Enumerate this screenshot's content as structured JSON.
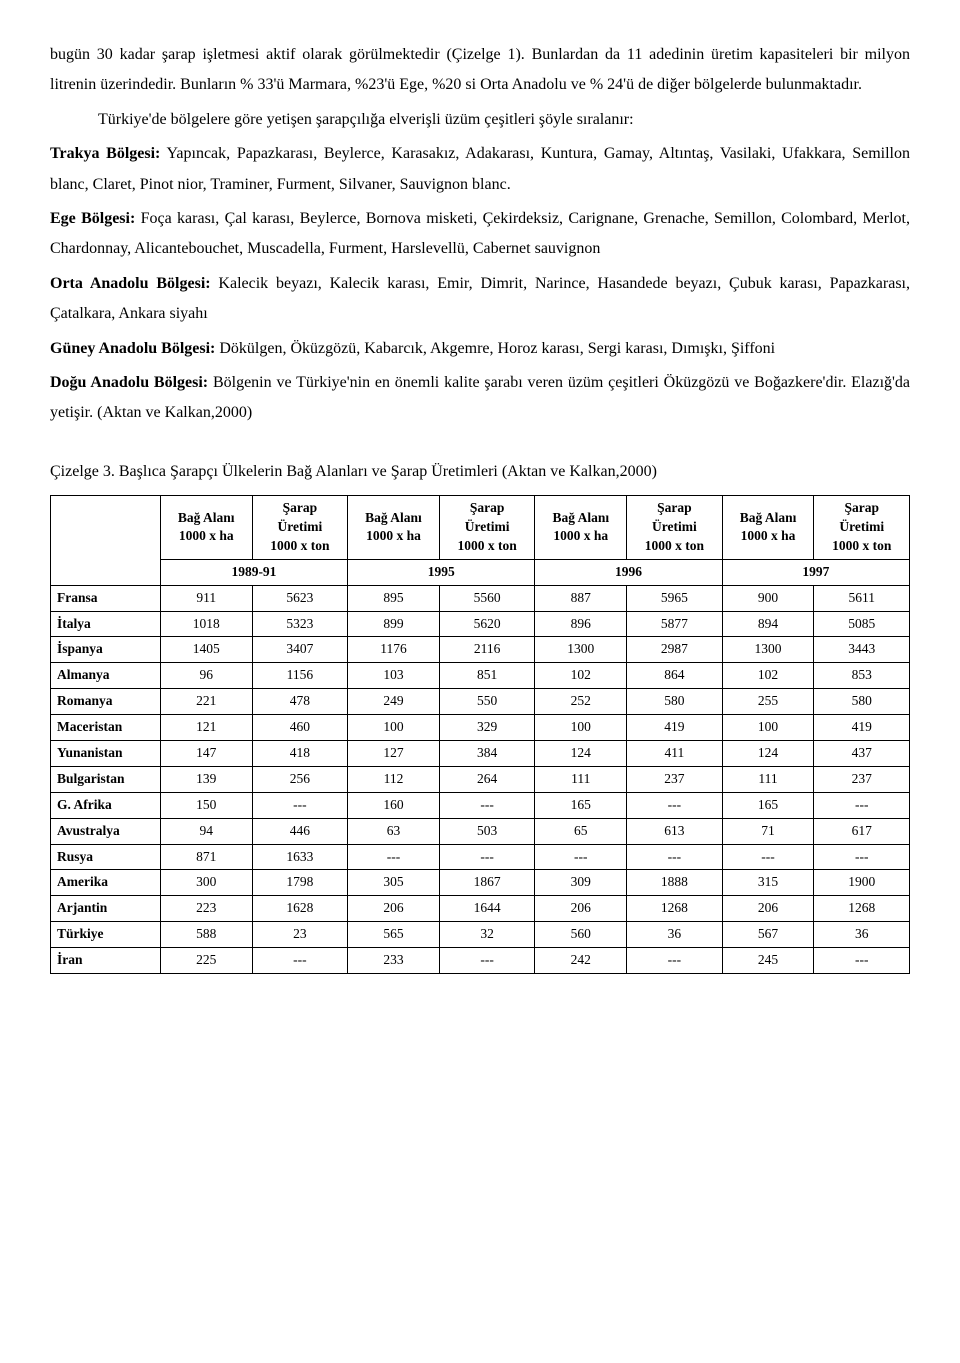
{
  "paragraphs": {
    "p1": "bugün 30 kadar şarap işletmesi aktif olarak görülmektedir (Çizelge 1). Bunlardan da 11 adedinin üretim kapasiteleri bir milyon litrenin üzerindedir. Bunların % 33'ü Marmara, %23'ü Ege, %20 si Orta Anadolu ve % 24'ü de diğer bölgelerde bulunmaktadır.",
    "p2": "Türkiye'de bölgelere göre yetişen şarapçılığa elverişli üzüm çeşitleri şöyle sıralanır:",
    "trakya_label": "Trakya Bölgesi:",
    "trakya_text": " Yapıncak, Papazkarası, Beylerce, Karasakız, Adakarası, Kuntura, Gamay, Altıntaş, Vasilaki, Ufakkara, Semillon blanc, Claret, Pinot nior, Traminer, Furment, Silvaner, Sauvignon blanc.",
    "ege_label": "Ege Bölgesi:",
    "ege_text": " Foça karası, Çal karası, Beylerce, Bornova misketi, Çekirdeksiz, Carignane, Grenache, Semillon, Colombard, Merlot, Chardonnay, Alicantebouchet, Muscadella, Furment, Harslevellü, Cabernet sauvignon",
    "orta_label": "Orta Anadolu Bölgesi:",
    "orta_text": " Kalecik beyazı, Kalecik karası, Emir, Dimrit, Narince, Hasandede beyazı, Çubuk karası, Papazkarası, Çatalkara, Ankara siyahı",
    "guney_label": "Güney Anadolu Bölgesi:",
    "guney_text": " Dökülgen, Öküzgözü, Kabarcık, Akgemre, Horoz karası, Sergi karası, Dımışkı, Şiffoni",
    "dogu_label": "Doğu Anadolu Bölgesi:",
    "dogu_text": " Bölgenin ve Türkiye'nin en önemli kalite şarabı veren üzüm çeşitleri Öküzgözü ve Boğazkere'dir. Elazığ'da yetişir. (Aktan ve Kalkan,2000)"
  },
  "table": {
    "caption": "Çizelge 3. Başlıca Şarapçı Ülkelerin Bağ Alanları ve Şarap Üretimleri (Aktan ve Kalkan,2000)",
    "head_area": "Bağ Alanı",
    "head_area_unit": "1000 x ha",
    "head_prod": "Şarap",
    "head_prod2": "Üretimi",
    "head_prod_unit": "1000 x ton",
    "years": [
      "1989-91",
      "1995",
      "1996",
      "1997"
    ],
    "rows": [
      {
        "label": "Fransa",
        "cells": [
          "911",
          "5623",
          "895",
          "5560",
          "887",
          "5965",
          "900",
          "5611"
        ]
      },
      {
        "label": "İtalya",
        "cells": [
          "1018",
          "5323",
          "899",
          "5620",
          "896",
          "5877",
          "894",
          "5085"
        ]
      },
      {
        "label": "İspanya",
        "cells": [
          "1405",
          "3407",
          "1176",
          "2116",
          "1300",
          "2987",
          "1300",
          "3443"
        ]
      },
      {
        "label": "Almanya",
        "cells": [
          "96",
          "1156",
          "103",
          "851",
          "102",
          "864",
          "102",
          "853"
        ]
      },
      {
        "label": "Romanya",
        "cells": [
          "221",
          "478",
          "249",
          "550",
          "252",
          "580",
          "255",
          "580"
        ]
      },
      {
        "label": "Maceristan",
        "cells": [
          "121",
          "460",
          "100",
          "329",
          "100",
          "419",
          "100",
          "419"
        ]
      },
      {
        "label": "Yunanistan",
        "cells": [
          "147",
          "418",
          "127",
          "384",
          "124",
          "411",
          "124",
          "437"
        ]
      },
      {
        "label": "Bulgaristan",
        "cells": [
          "139",
          "256",
          "112",
          "264",
          "111",
          "237",
          "111",
          "237"
        ]
      },
      {
        "label": "G. Afrika",
        "cells": [
          "150",
          "---",
          "160",
          "---",
          "165",
          "---",
          "165",
          "---"
        ]
      },
      {
        "label": "Avustralya",
        "cells": [
          "94",
          "446",
          "63",
          "503",
          "65",
          "613",
          "71",
          "617"
        ]
      },
      {
        "label": "Rusya",
        "cells": [
          "871",
          "1633",
          "---",
          "---",
          "---",
          "---",
          "---",
          "---"
        ]
      },
      {
        "label": "Amerika",
        "cells": [
          "300",
          "1798",
          "305",
          "1867",
          "309",
          "1888",
          "315",
          "1900"
        ]
      },
      {
        "label": "Arjantin",
        "cells": [
          "223",
          "1628",
          "206",
          "1644",
          "206",
          "1268",
          "206",
          "1268"
        ]
      },
      {
        "label": "Türkiye",
        "cells": [
          "588",
          "23",
          "565",
          "32",
          "560",
          "36",
          "567",
          "36"
        ]
      },
      {
        "label": "İran",
        "cells": [
          "225",
          "---",
          "233",
          "---",
          "242",
          "---",
          "245",
          "---"
        ]
      }
    ]
  }
}
